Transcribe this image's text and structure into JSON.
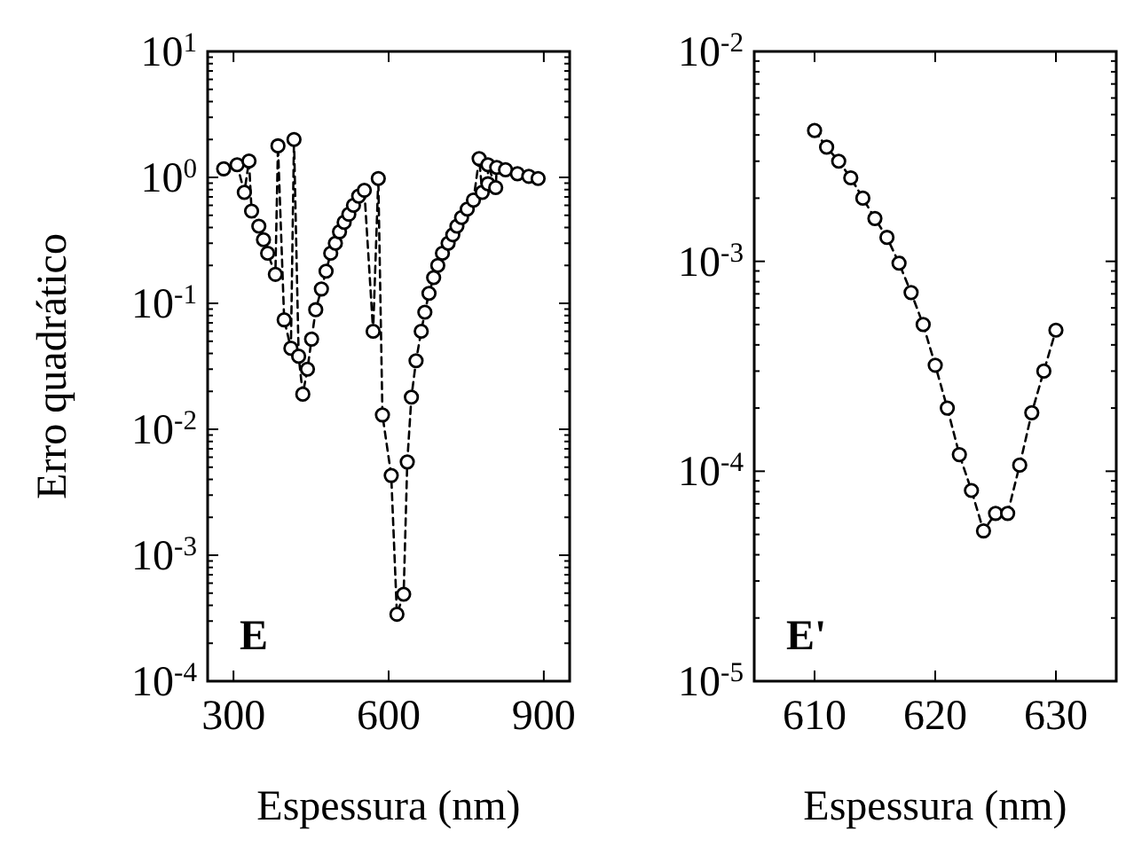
{
  "chart_data": [
    {
      "type": "line",
      "xlabel": "Espessura (nm)",
      "ylabel": "Erro quadrático",
      "log": "y",
      "marker": "circle",
      "line_style": "dashed",
      "xlim": [
        250,
        950
      ],
      "xticks": [
        300,
        600,
        900
      ],
      "ylim": [
        0.0001,
        10
      ],
      "yticks": [
        {
          "value": 10,
          "label": "10$^{1}$"
        },
        {
          "value": 1,
          "label": "10$^{0}$"
        },
        {
          "value": 0.1,
          "label": "10$^{-1}$"
        },
        {
          "value": 0.01,
          "label": "10$^{-2}$"
        },
        {
          "value": 0.001,
          "label": "10$^{-3}$"
        },
        {
          "value": 0.0001,
          "label": "10$^{-4}$"
        }
      ],
      "annotations": [
        "E"
      ],
      "series": [
        {
          "color": "#000000",
          "x": [
            281,
            307,
            321,
            330,
            335,
            349,
            358,
            366,
            381,
            386,
            398,
            411,
            417,
            426,
            434,
            443,
            451,
            459,
            470,
            479,
            488,
            497,
            505,
            514,
            523,
            532,
            542,
            553,
            570,
            580,
            588,
            605,
            616,
            629,
            636,
            644,
            653,
            663,
            670,
            678,
            687,
            695,
            704,
            715,
            724,
            732,
            741,
            752,
            764,
            775,
            781,
            792,
            792,
            807,
            809,
            826,
            849,
            871,
            889
          ],
          "values": [
            1.17,
            1.26,
            0.76,
            1.35,
            0.54,
            0.41,
            0.32,
            0.25,
            0.17,
            1.78,
            0.074,
            0.044,
            2.0,
            0.038,
            0.019,
            0.03,
            0.052,
            0.089,
            0.13,
            0.18,
            0.25,
            0.3,
            0.37,
            0.44,
            0.51,
            0.6,
            0.71,
            0.79,
            0.06,
            0.98,
            0.013,
            0.0043,
            0.00034,
            0.00049,
            0.0055,
            0.018,
            0.035,
            0.06,
            0.085,
            0.12,
            0.16,
            0.2,
            0.25,
            0.3,
            0.35,
            0.41,
            0.48,
            0.56,
            0.66,
            1.41,
            0.76,
            0.89,
            1.26,
            0.83,
            1.2,
            1.15,
            1.07,
            1.02,
            0.98
          ]
        }
      ]
    },
    {
      "type": "line",
      "xlabel": "Espessura (nm)",
      "log": "y",
      "marker": "circle",
      "line_style": "dashed",
      "xlim": [
        605,
        635
      ],
      "xticks": [
        610,
        620,
        630
      ],
      "ylim": [
        1e-05,
        0.01
      ],
      "yticks": [
        {
          "value": 0.01,
          "label": "10$^{-2}$"
        },
        {
          "value": 0.001,
          "label": "10$^{-3}$"
        },
        {
          "value": 0.0001,
          "label": "10$^{-4}$"
        },
        {
          "value": 1e-05,
          "label": "10$^{-5}$"
        }
      ],
      "annotations": [
        "E'"
      ],
      "series": [
        {
          "color": "#000000",
          "x": [
            610,
            611,
            612,
            613,
            614,
            615,
            616,
            617,
            618,
            619,
            620,
            621,
            622,
            623,
            624,
            625,
            626,
            627,
            628,
            629,
            630
          ],
          "values": [
            0.0042,
            0.0035,
            0.003,
            0.0025,
            0.002,
            0.0016,
            0.0013,
            0.00098,
            0.00071,
            0.0005,
            0.00032,
            0.0002,
            0.00012,
            8.1e-05,
            5.2e-05,
            6.3e-05,
            6.3e-05,
            0.000107,
            0.00019,
            0.0003,
            0.00047
          ]
        }
      ]
    }
  ]
}
